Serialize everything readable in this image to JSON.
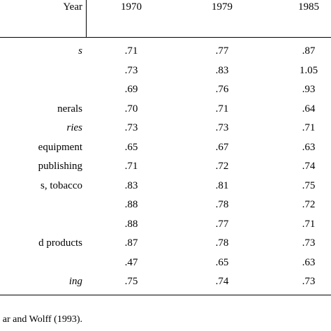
{
  "header": {
    "year_label": "Year",
    "columns": [
      "1970",
      "1979",
      "1985"
    ]
  },
  "rows": [
    {
      "label": "s",
      "italic": true,
      "values": [
        ".71",
        ".77",
        ".87"
      ]
    },
    {
      "label": "",
      "italic": false,
      "values": [
        ".73",
        ".83",
        "1.05"
      ]
    },
    {
      "label": "",
      "italic": false,
      "values": [
        ".69",
        ".76",
        ".93"
      ]
    },
    {
      "label": "nerals",
      "italic": false,
      "values": [
        ".70",
        ".71",
        ".64"
      ]
    },
    {
      "label": "ries",
      "italic": true,
      "values": [
        ".73",
        ".73",
        ".71"
      ]
    },
    {
      "label": "equipment",
      "italic": false,
      "values": [
        ".65",
        ".67",
        ".63"
      ]
    },
    {
      "label": "publishing",
      "italic": false,
      "values": [
        ".71",
        ".72",
        ".74"
      ]
    },
    {
      "label": "s, tobacco",
      "italic": false,
      "values": [
        ".83",
        ".81",
        ".75"
      ]
    },
    {
      "label": "",
      "italic": false,
      "values": [
        ".88",
        ".78",
        ".72"
      ]
    },
    {
      "label": "",
      "italic": false,
      "values": [
        ".88",
        ".77",
        ".71"
      ]
    },
    {
      "label": "d products",
      "italic": false,
      "values": [
        ".87",
        ".78",
        ".73"
      ]
    },
    {
      "label": "",
      "italic": false,
      "values": [
        ".47",
        ".65",
        ".63"
      ]
    },
    {
      "label": "ing",
      "italic": true,
      "values": [
        ".75",
        ".74",
        ".73"
      ]
    }
  ],
  "footnote": "ar and Wolff (1993)."
}
